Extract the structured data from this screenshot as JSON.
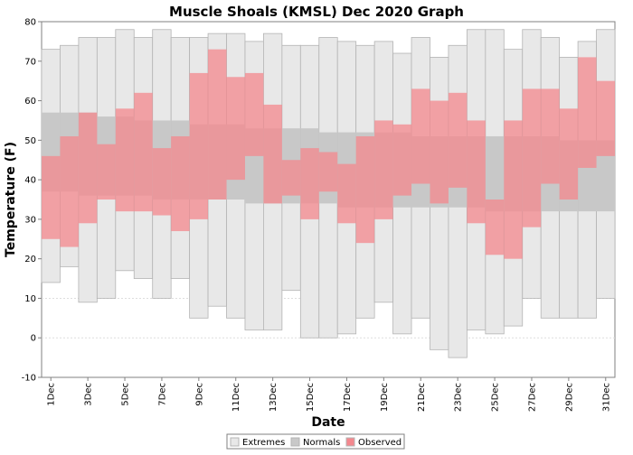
{
  "chart_data": {
    "type": "bar",
    "title": "Muscle Shoals (KMSL) Dec 2020 Graph",
    "xlabel": "Date",
    "ylabel": "Temperature (F)",
    "ylim": [
      -10,
      80
    ],
    "yticks": [
      -10,
      0,
      10,
      20,
      30,
      40,
      50,
      60,
      70,
      80
    ],
    "categories": [
      "1Dec",
      "2Dec",
      "3Dec",
      "4Dec",
      "5Dec",
      "6Dec",
      "7Dec",
      "8Dec",
      "9Dec",
      "10Dec",
      "11Dec",
      "12Dec",
      "13Dec",
      "14Dec",
      "15Dec",
      "16Dec",
      "17Dec",
      "18Dec",
      "19Dec",
      "20Dec",
      "21Dec",
      "22Dec",
      "23Dec",
      "24Dec",
      "25Dec",
      "26Dec",
      "27Dec",
      "28Dec",
      "29Dec",
      "30Dec",
      "31Dec"
    ],
    "tick_labels": [
      "1Dec",
      "3Dec",
      "5Dec",
      "7Dec",
      "9Dec",
      "11Dec",
      "13Dec",
      "15Dec",
      "17Dec",
      "19Dec",
      "21Dec",
      "23Dec",
      "25Dec",
      "27Dec",
      "29Dec",
      "31Dec"
    ],
    "legend": {
      "position": "bottom-center",
      "entries": [
        "Extremes",
        "Normals",
        "Observed"
      ]
    },
    "colors": {
      "extremes_fill": "#e8e8e8",
      "extremes_stroke": "#b4b4b4",
      "normals_fill": "#c8c8c8",
      "observed_fill": "#f4888e",
      "grid": "#dddddd"
    },
    "series": [
      {
        "name": "Extremes",
        "low": [
          14,
          18,
          9,
          10,
          17,
          15,
          10,
          15,
          5,
          8,
          5,
          2,
          2,
          12,
          0,
          0,
          1,
          5,
          9,
          1,
          5,
          -3,
          -5,
          2,
          1,
          3,
          10,
          5,
          5,
          5,
          10
        ],
        "high": [
          73,
          74,
          76,
          76,
          78,
          76,
          78,
          76,
          76,
          77,
          77,
          75,
          77,
          74,
          74,
          76,
          75,
          74,
          75,
          72,
          76,
          71,
          74,
          78,
          78,
          73,
          78,
          76,
          71,
          75,
          78
        ]
      },
      {
        "name": "Normals",
        "low": [
          37,
          37,
          36,
          36,
          36,
          36,
          35,
          35,
          35,
          35,
          35,
          34,
          34,
          34,
          34,
          34,
          33,
          33,
          33,
          33,
          33,
          33,
          33,
          33,
          32,
          32,
          32,
          32,
          32,
          32,
          32
        ],
        "high": [
          57,
          57,
          57,
          56,
          56,
          55,
          55,
          55,
          54,
          54,
          54,
          53,
          53,
          53,
          53,
          52,
          52,
          52,
          52,
          52,
          51,
          51,
          51,
          51,
          51,
          51,
          51,
          51,
          50,
          50,
          50
        ]
      },
      {
        "name": "Observed",
        "low": [
          25,
          23,
          29,
          35,
          32,
          32,
          31,
          27,
          30,
          35,
          40,
          46,
          34,
          36,
          30,
          37,
          29,
          24,
          30,
          36,
          39,
          34,
          38,
          29,
          21,
          20,
          28,
          39,
          35,
          43,
          46
        ],
        "high": [
          46,
          51,
          57,
          49,
          58,
          62,
          48,
          51,
          67,
          73,
          66,
          67,
          59,
          45,
          48,
          47,
          44,
          51,
          55,
          54,
          63,
          60,
          62,
          55,
          35,
          55,
          63,
          63,
          58,
          71,
          65
        ]
      }
    ]
  }
}
